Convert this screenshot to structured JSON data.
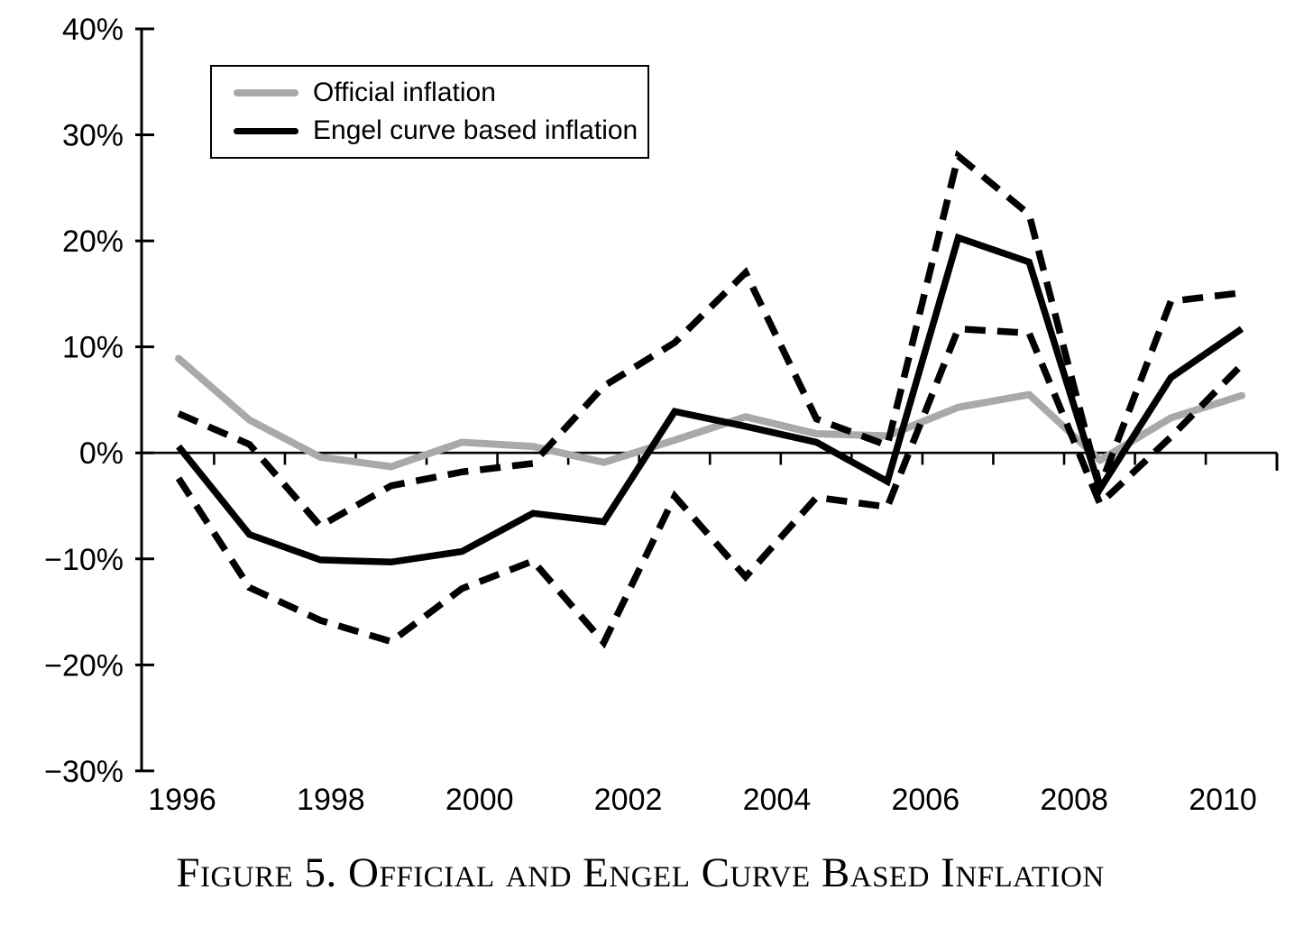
{
  "figure_caption": "Figure 5. Official and Engel Curve Based Inflation",
  "colors": {
    "official_line": "#a9a9a9",
    "engel_line": "#000000",
    "ci_line": "#000000",
    "axis": "#000000",
    "background": "#ffffff"
  },
  "chart_data": {
    "type": "line",
    "title": "",
    "xlabel": "",
    "ylabel": "",
    "x": [
      1996,
      1997,
      1998,
      1999,
      2000,
      2001,
      2002,
      2003,
      2004,
      2005,
      2006,
      2007,
      2008,
      2009,
      2010,
      2011
    ],
    "series": [
      {
        "name": "official_inflation",
        "label": "Official inflation",
        "style": "solid",
        "color": "#a9a9a9",
        "values": [
          8.9,
          3.1,
          -0.4,
          -1.3,
          1.0,
          0.6,
          -0.9,
          1.2,
          3.4,
          1.8,
          1.6,
          4.3,
          5.5,
          -0.7,
          3.3,
          5.4
        ]
      },
      {
        "name": "engel_curve_inflation",
        "label": "Engel curve based inflation",
        "style": "solid",
        "color": "#000000",
        "values": [
          0.6,
          -7.7,
          -10.1,
          -10.3,
          -9.3,
          -5.7,
          -6.5,
          3.9,
          2.5,
          1.0,
          -2.7,
          20.3,
          18.0,
          -3.4,
          7.1,
          11.7
        ]
      },
      {
        "name": "confidence_band_upper",
        "label": "",
        "style": "dashed",
        "color": "#000000",
        "values": [
          3.7,
          0.8,
          -6.9,
          -3.1,
          -1.8,
          -1.0,
          6.3,
          10.4,
          17.0,
          3.2,
          0.7,
          28.0,
          22.5,
          -3.2,
          14.3,
          15.1
        ]
      },
      {
        "name": "confidence_band_lower",
        "label": "",
        "style": "dashed",
        "color": "#000000",
        "values": [
          -2.4,
          -12.7,
          -15.8,
          -17.8,
          -12.8,
          -10.2,
          -17.9,
          -4.1,
          -11.7,
          -4.2,
          -5.1,
          11.7,
          11.3,
          -4.8,
          1.5,
          8.3
        ]
      }
    ],
    "legend": [
      {
        "label": "Official inflation"
      },
      {
        "label": "Engel curve based inflation"
      }
    ],
    "legend_position": "top-left",
    "grid": false,
    "ylim": [
      -30,
      40
    ],
    "xlim": [
      1995.5,
      2011.5
    ],
    "y_tick_labels": [
      "40%",
      "30%",
      "20%",
      "10%",
      "0%",
      "−10%",
      "−20%",
      "−30%"
    ],
    "y_tick_values": [
      40,
      30,
      20,
      10,
      0,
      -10,
      -20,
      -30
    ],
    "x_tick_labels": [
      "1996",
      "1998",
      "2000",
      "2002",
      "2004",
      "2006",
      "2008",
      "2010"
    ]
  }
}
